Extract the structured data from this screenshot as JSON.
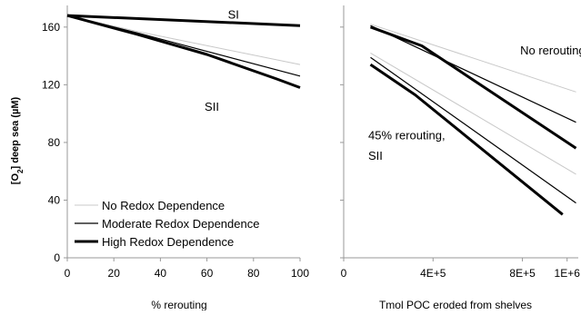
{
  "chart_data": [
    {
      "type": "line",
      "xlabel": "% rerouting",
      "ylabel_parts": [
        "[O",
        "2",
        "] deep sea (µM)"
      ],
      "xlim": [
        0,
        100
      ],
      "ylim": [
        0,
        175
      ],
      "xticks": [
        0,
        20,
        40,
        60,
        80,
        100
      ],
      "yticks": [
        0,
        40,
        80,
        120,
        160
      ],
      "ytick_labels": [
        "0",
        "40",
        "80",
        "120",
        "160"
      ],
      "grid": false,
      "series": [
        {
          "style": "no-redox",
          "x": [
            0,
            30,
            100
          ],
          "y": [
            168,
            157,
            134
          ]
        },
        {
          "style": "moderate-redox",
          "x": [
            0,
            30,
            100
          ],
          "y": [
            168,
            156,
            126
          ]
        },
        {
          "style": "high-redox",
          "x": [
            0,
            30,
            60,
            90,
            100
          ],
          "y": [
            168,
            155,
            141,
            124,
            118
          ]
        },
        {
          "style": "high-redox",
          "x": [
            0,
            100
          ],
          "y": [
            168,
            161
          ]
        }
      ],
      "annotations": [
        {
          "text": "SI",
          "x": 69,
          "y": 166
        },
        {
          "text": "SII",
          "x": 59,
          "y": 102
        }
      ],
      "legend": {
        "placement": "bottom-left",
        "entries": [
          {
            "label": "No Redox Dependence",
            "style": "no-redox"
          },
          {
            "label": "Moderate Redox Dependence",
            "style": "moderate-redox"
          },
          {
            "label": "High Redox Dependence",
            "style": "high-redox"
          }
        ]
      }
    },
    {
      "type": "line",
      "xlabel": "Tmol POC eroded from shelves",
      "xlim": [
        0,
        1050000
      ],
      "ylim": [
        0,
        175
      ],
      "xticks": [
        0,
        400000,
        800000,
        1000000
      ],
      "xtick_labels": [
        "0",
        "4E+5",
        "8E+5",
        "1E+6"
      ],
      "yticks": [
        0,
        40,
        80,
        120,
        160
      ],
      "grid": false,
      "series": [
        {
          "style": "no-redox",
          "x": [
            120000,
            1040000
          ],
          "y": [
            162,
            115
          ]
        },
        {
          "style": "moderate-redox",
          "x": [
            120000,
            1040000
          ],
          "y": [
            161,
            94
          ]
        },
        {
          "style": "high-redox",
          "x": [
            120000,
            350000,
            1040000
          ],
          "y": [
            160,
            147,
            76
          ]
        },
        {
          "style": "no-redox",
          "x": [
            120000,
            1040000
          ],
          "y": [
            142,
            58
          ]
        },
        {
          "style": "moderate-redox",
          "x": [
            120000,
            1040000
          ],
          "y": [
            139,
            38
          ]
        },
        {
          "style": "high-redox",
          "x": [
            120000,
            320000,
            980000
          ],
          "y": [
            134,
            113,
            30
          ]
        }
      ],
      "annotations": [
        {
          "text": "No rerouting",
          "x": 790000,
          "y": 141
        },
        {
          "text": "45% rerouting,",
          "x": 110000,
          "y": 82
        },
        {
          "text": "SII",
          "x": 110000,
          "y": 68
        }
      ]
    }
  ],
  "styles": {
    "no-redox": {
      "color": "#c8c8c8",
      "width": 1
    },
    "moderate-redox": {
      "color": "#000000",
      "width": 1.2
    },
    "high-redox": {
      "color": "#000000",
      "width": 3
    }
  },
  "axis_color": "#999999"
}
